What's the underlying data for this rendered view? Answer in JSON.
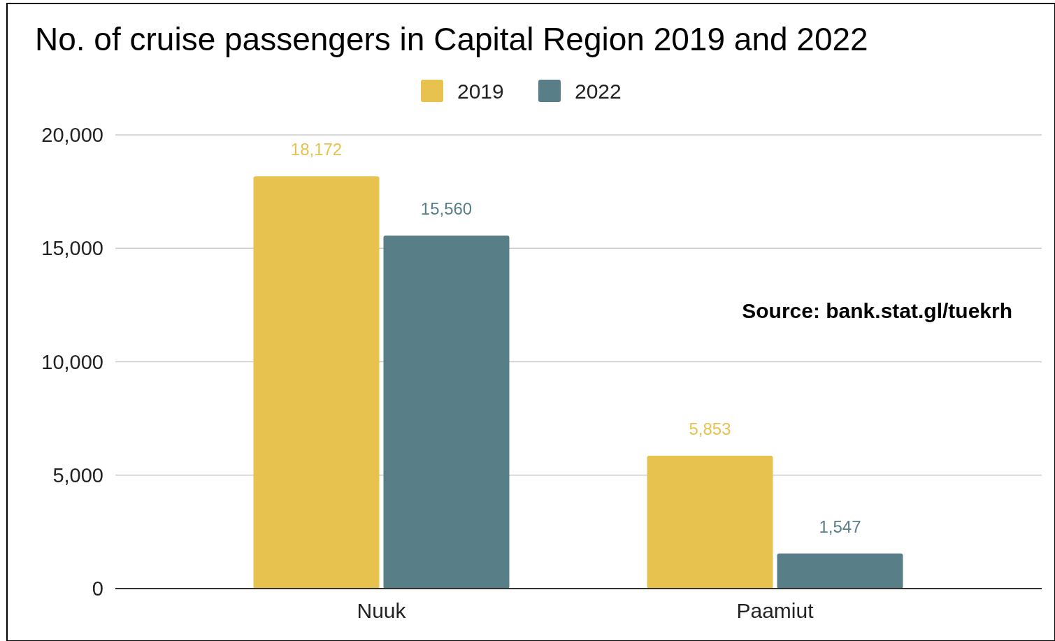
{
  "chart_data": {
    "type": "bar",
    "title": "No. of cruise passengers in Capital Region 2019 and 2022",
    "categories": [
      "Nuuk",
      "Paamiut"
    ],
    "series": [
      {
        "name": "2019",
        "color": "#e8c24f",
        "values": [
          18172,
          5853
        ],
        "value_labels": [
          "18,172",
          "5,853"
        ]
      },
      {
        "name": "2022",
        "color": "#587f87",
        "values": [
          15560,
          1547
        ],
        "value_labels": [
          "15,560",
          "1,547"
        ]
      }
    ],
    "ylim": [
      0,
      20000
    ],
    "yticks": [
      {
        "value": 0,
        "label": "0"
      },
      {
        "value": 5000,
        "label": "5,000"
      },
      {
        "value": 10000,
        "label": "10,000"
      },
      {
        "value": 15000,
        "label": "15,000"
      },
      {
        "value": 20000,
        "label": "20,000"
      }
    ],
    "grid": "y",
    "legend": "top",
    "annotations": [
      "Source: bank.stat.gl/tuekrh"
    ]
  }
}
